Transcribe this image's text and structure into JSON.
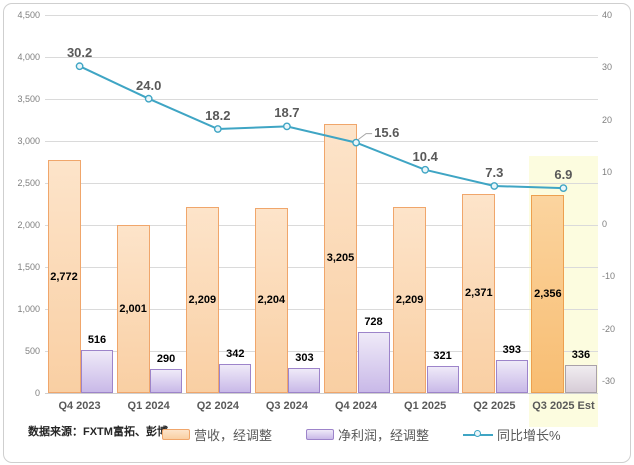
{
  "source_note": "数据来源：FXTM富拓、彭博",
  "legend": {
    "items": [
      {
        "label": "营收，经调整",
        "type": "bar-orange"
      },
      {
        "label": "净利润，经调整",
        "type": "bar-purple"
      },
      {
        "label": "同比增长%",
        "type": "line-teal"
      }
    ]
  },
  "chart_data": {
    "type": "bar",
    "subtype": "grouped-bars-with-line",
    "categories": [
      "Q4 2023",
      "Q1 2024",
      "Q2 2024",
      "Q3 2024",
      "Q4 2024",
      "Q1 2025",
      "Q2 2025",
      "Q3 2025 Est"
    ],
    "series": [
      {
        "name": "营收，经调整",
        "type": "bar",
        "axis": "left",
        "values": [
          2772,
          2001,
          2209,
          2204,
          3205,
          2209,
          2371,
          2356
        ],
        "labels": [
          "2,772",
          "2,001",
          "2,209",
          "2,204",
          "3,205",
          "2,209",
          "2,371",
          "2,356"
        ],
        "label_position": "inside-center"
      },
      {
        "name": "净利润，经调整",
        "type": "bar",
        "axis": "left",
        "values": [
          516,
          290,
          342,
          303,
          728,
          321,
          393,
          336
        ],
        "labels": [
          "516",
          "290",
          "342",
          "303",
          "728",
          "321",
          "393",
          "336"
        ],
        "label_position": "outside-top"
      },
      {
        "name": "同比增长%",
        "type": "line",
        "axis": "right",
        "values": [
          30.2,
          24.0,
          18.2,
          18.7,
          15.6,
          10.4,
          7.3,
          6.9
        ],
        "labels": [
          "30.2",
          "24.0",
          "18.2",
          "18.7",
          "15.6",
          "10.4",
          "7.3",
          "6.9"
        ],
        "label_position": "above-marker",
        "label_overrides": {
          "4": {
            "dx": 18,
            "dy": -17,
            "leader": true
          }
        }
      }
    ],
    "left_axis": {
      "min": 0,
      "max": 4500,
      "step": 500,
      "tick_labels": [
        "4,500",
        "4,000",
        "3,500",
        "3,000",
        "2,500",
        "2,000",
        "1,500",
        "1,000",
        "500",
        "0"
      ]
    },
    "right_axis": {
      "min": -32.3,
      "max": 40,
      "step": 10,
      "tick_labels": [
        "40",
        "30",
        "20",
        "10",
        "0",
        "-10",
        "-20",
        "-30"
      ]
    },
    "highlight": {
      "category": "Q3 2025 Est"
    },
    "grid": true,
    "legend_position": "bottom",
    "colors": {
      "revenue_fill_top": "#FDE4CA",
      "revenue_fill_bottom": "#F9CFA3",
      "revenue_border": "#F0A66B",
      "revenue_est_fill_top": "#FBD49F",
      "revenue_est_fill_bottom": "#F8BD72",
      "revenue_est_border": "#EDA04F",
      "profit_fill_top": "#EFEAF8",
      "profit_fill_bottom": "#C9B9E8",
      "profit_border": "#9D84CA",
      "profit_est_fill_top": "#F0EDF0",
      "profit_est_fill_bottom": "#D7CCD7",
      "profit_est_border": "#A9A1A9",
      "line": "#3FA5C4",
      "marker_fill": "#EAF6FA",
      "highlight_bg": "#FCFCDF",
      "grid": "#DADADA",
      "axis_text": "#7F7F7F",
      "category_text": "#595959",
      "leader": "#A6A6A6"
    }
  }
}
